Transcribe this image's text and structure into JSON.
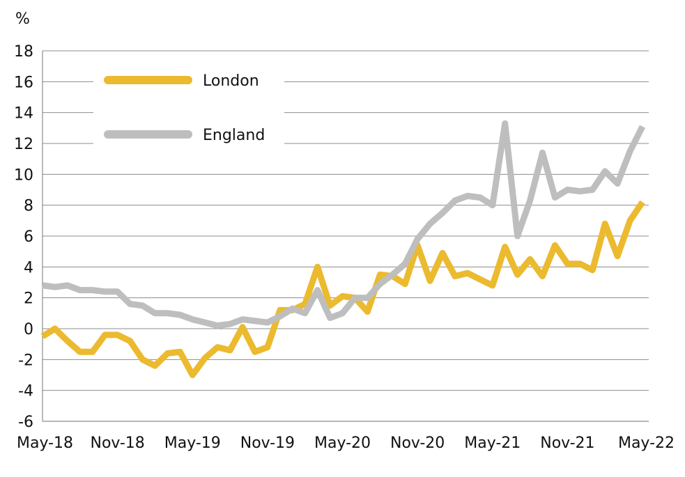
{
  "chart_data": {
    "type": "line",
    "title": "",
    "xlabel": "",
    "ylabel": "%",
    "ylim": [
      -6,
      18
    ],
    "yticks": [
      -6,
      -4,
      -2,
      0,
      2,
      4,
      6,
      8,
      10,
      12,
      14,
      16,
      18
    ],
    "grid": true,
    "legend_position": "top-left",
    "x": [
      "May-18",
      "Jun-18",
      "Jul-18",
      "Aug-18",
      "Sep-18",
      "Oct-18",
      "Nov-18",
      "Dec-18",
      "Jan-19",
      "Feb-19",
      "Mar-19",
      "Apr-19",
      "May-19",
      "Jun-19",
      "Jul-19",
      "Aug-19",
      "Sep-19",
      "Oct-19",
      "Nov-19",
      "Dec-19",
      "Jan-20",
      "Feb-20",
      "Mar-20",
      "Apr-20",
      "May-20",
      "Jun-20",
      "Jul-20",
      "Aug-20",
      "Sep-20",
      "Oct-20",
      "Nov-20",
      "Dec-20",
      "Jan-21",
      "Feb-21",
      "Mar-21",
      "Apr-21",
      "May-21",
      "Jun-21",
      "Jul-21",
      "Aug-21",
      "Sep-21",
      "Oct-21",
      "Nov-21",
      "Dec-21",
      "Jan-22",
      "Feb-22",
      "Mar-22",
      "Apr-22",
      "May-22"
    ],
    "x_tick_labels": [
      "May-18",
      "Nov-18",
      "May-19",
      "Nov-19",
      "May-20",
      "Nov-20",
      "May-21",
      "Nov-21",
      "May-22"
    ],
    "series": [
      {
        "name": "London",
        "color": "#EBBA2E",
        "values": [
          -0.5,
          0.0,
          -0.8,
          -1.5,
          -1.5,
          -0.4,
          -0.4,
          -0.8,
          -2.0,
          -2.4,
          -1.6,
          -1.5,
          -3.0,
          -1.9,
          -1.2,
          -1.4,
          0.1,
          -1.5,
          -1.2,
          1.2,
          1.2,
          1.6,
          4.0,
          1.5,
          2.1,
          2.0,
          1.1,
          3.5,
          3.4,
          2.9,
          5.4,
          3.1,
          4.9,
          3.4,
          3.6,
          3.2,
          2.8,
          5.3,
          3.5,
          4.5,
          3.4,
          5.4,
          4.2,
          4.2,
          3.8,
          6.8,
          4.7,
          7.0,
          8.2
        ]
      },
      {
        "name": "England",
        "color": "#BEBEBE",
        "values": [
          2.8,
          2.7,
          2.8,
          2.5,
          2.5,
          2.4,
          2.4,
          1.6,
          1.5,
          1.0,
          1.0,
          0.9,
          0.6,
          0.4,
          0.2,
          0.3,
          0.6,
          0.5,
          0.4,
          0.8,
          1.3,
          1.0,
          2.5,
          0.7,
          1.0,
          2.0,
          2.0,
          2.9,
          3.5,
          4.2,
          5.8,
          6.8,
          7.5,
          8.3,
          8.6,
          8.5,
          8.0,
          13.3,
          6.0,
          8.3,
          11.4,
          8.5,
          9.0,
          8.9,
          9.0,
          10.2,
          9.4,
          11.5,
          13.1
        ]
      }
    ]
  }
}
